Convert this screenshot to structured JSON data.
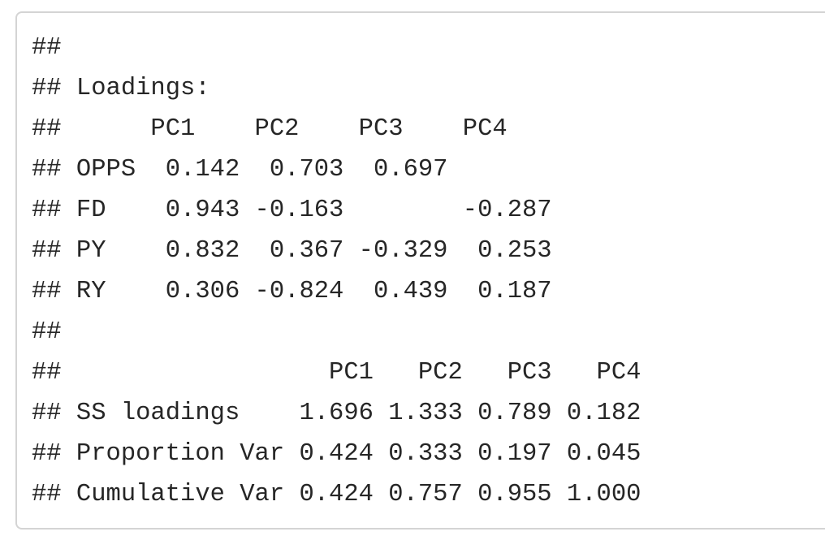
{
  "output_lines": [
    "##",
    "## Loadings:",
    "##      PC1    PC2    PC3    PC4   ",
    "## OPPS  0.142  0.703  0.697       ",
    "## FD    0.943 -0.163        -0.287",
    "## PY    0.832  0.367 -0.329  0.253",
    "## RY    0.306 -0.824  0.439  0.187",
    "##",
    "##                  PC1   PC2   PC3   PC4",
    "## SS loadings    1.696 1.333 0.789 0.182",
    "## Proportion Var 0.424 0.333 0.197 0.045",
    "## Cumulative Var 0.424 0.757 0.955 1.000"
  ]
}
